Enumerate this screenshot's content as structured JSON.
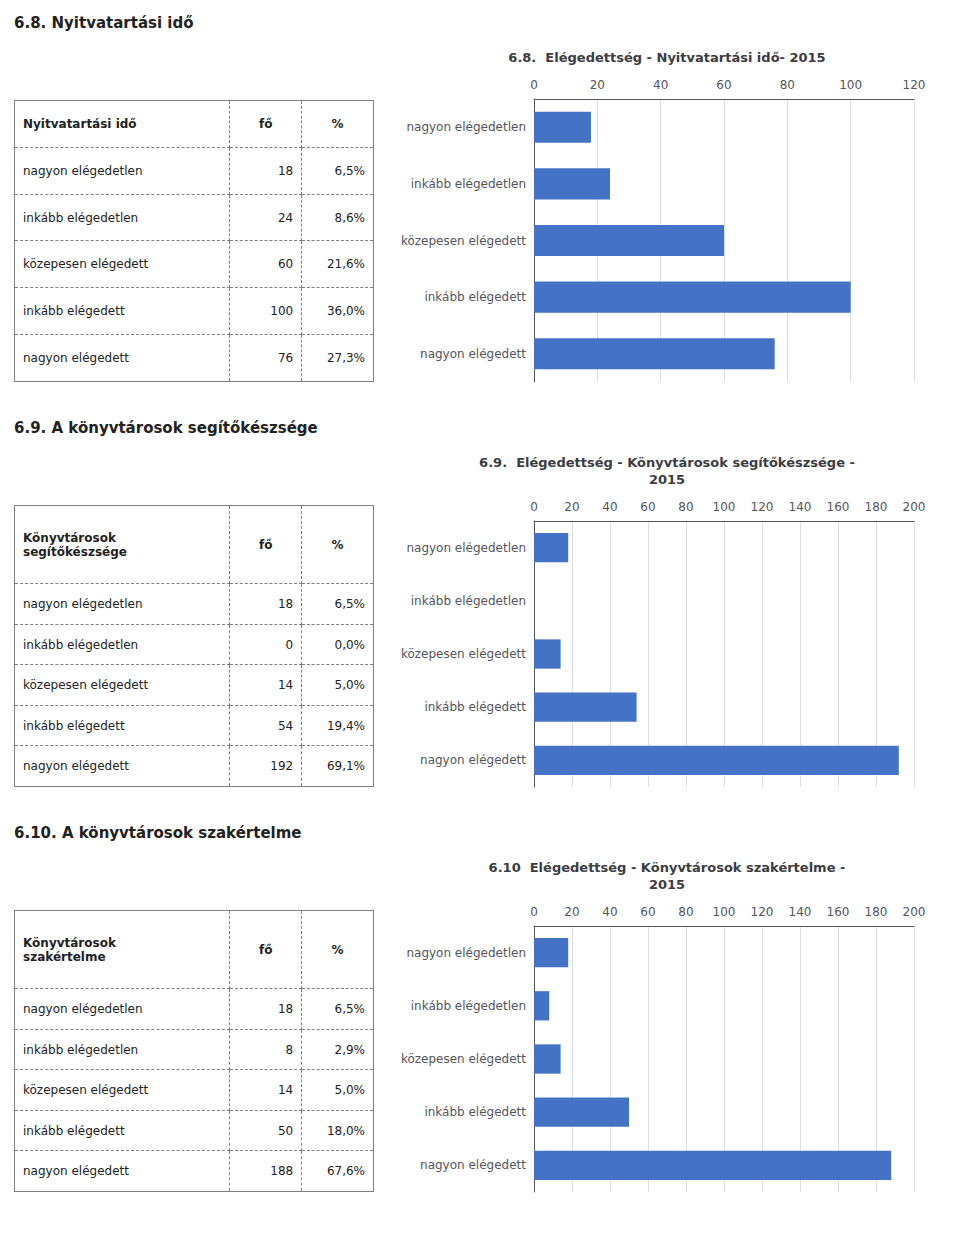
{
  "chart_data": [
    {
      "type": "bar",
      "orientation": "horizontal",
      "section_title": "6.8. Nyitvatartási idő",
      "title": "6.8.  Elégedettség - Nyitvatartási idő- 2015",
      "categories": [
        "nagyon elégedetlen",
        "inkább elégedetlen",
        "közepesen elégedett",
        "inkább elégedett",
        "nagyon elégedett"
      ],
      "values": [
        18,
        24,
        60,
        100,
        76
      ],
      "color": "#4472C4",
      "xlim": [
        0,
        120
      ],
      "xticks": [
        0,
        20,
        40,
        60,
        80,
        100,
        120
      ],
      "grid": true,
      "table": {
        "header": [
          "Nyitvatartási idő"
        ],
        "columns": [
          "fő",
          "%"
        ],
        "percents": [
          {
            "value": 6.5,
            "label": "6,5%"
          },
          {
            "value": 8.6,
            "label": "8,6%"
          },
          {
            "value": 21.6,
            "label": "21,6%"
          },
          {
            "value": 36.0,
            "label": "36,0%"
          },
          {
            "value": 27.3,
            "label": "27,3%"
          }
        ]
      }
    },
    {
      "type": "bar",
      "orientation": "horizontal",
      "section_title": "6.9. A könyvtárosok segítőkészsége",
      "title": "6.9.  Elégedettség - Könyvtárosok segítőkészsége -\n2015",
      "categories": [
        "nagyon elégedetlen",
        "inkább elégedetlen",
        "közepesen elégedett",
        "inkább elégedett",
        "nagyon elégedett"
      ],
      "values": [
        18,
        0,
        14,
        54,
        192
      ],
      "color": "#4472C4",
      "xlim": [
        0,
        200
      ],
      "xticks": [
        0,
        20,
        40,
        60,
        80,
        100,
        120,
        140,
        160,
        180,
        200
      ],
      "grid": true,
      "table": {
        "header": [
          "Könyvtárosok",
          "segítőkészsége"
        ],
        "columns": [
          "fő",
          "%"
        ],
        "percents": [
          {
            "value": 6.5,
            "label": "6,5%"
          },
          {
            "value": 0.0,
            "label": "0,0%"
          },
          {
            "value": 5.0,
            "label": "5,0%"
          },
          {
            "value": 19.4,
            "label": "19,4%"
          },
          {
            "value": 69.1,
            "label": "69,1%"
          }
        ]
      }
    },
    {
      "type": "bar",
      "orientation": "horizontal",
      "section_title": "6.10. A könyvtárosok szakértelme",
      "title": "6.10  Elégedettség - Könyvtárosok szakértelme -\n2015",
      "categories": [
        "nagyon elégedetlen",
        "inkább elégedetlen",
        "közepesen elégedett",
        "inkább elégedett",
        "nagyon elégedett"
      ],
      "values": [
        18,
        8,
        14,
        50,
        188
      ],
      "color": "#4472C4",
      "xlim": [
        0,
        200
      ],
      "xticks": [
        0,
        20,
        40,
        60,
        80,
        100,
        120,
        140,
        160,
        180,
        200
      ],
      "grid": true,
      "table": {
        "header": [
          "Könyvtárosok",
          "szakértelme"
        ],
        "columns": [
          "fő",
          "%"
        ],
        "percents": [
          {
            "value": 6.5,
            "label": "6,5%"
          },
          {
            "value": 2.9,
            "label": "2,9%"
          },
          {
            "value": 5.0,
            "label": "5,0%"
          },
          {
            "value": 18.0,
            "label": "18,0%"
          },
          {
            "value": 67.6,
            "label": "67,6%"
          }
        ]
      }
    }
  ]
}
